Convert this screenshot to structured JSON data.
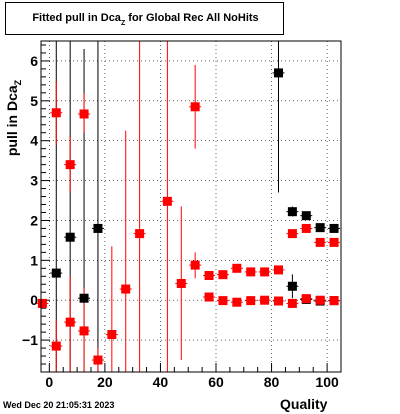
{
  "title": {
    "main": "Fitted pull in Dca",
    "subscript": "Z",
    "rest": " for Global Rec All NoHits"
  },
  "axes": {
    "ylabel_main": "pull in Dca",
    "ylabel_sub": "Z",
    "xlabel": "Quality"
  },
  "footer": "Wed Dec 20 21:05:31 2023",
  "colors": {
    "series_a": "#000000",
    "series_b": "#ff0000",
    "grid": "#000000"
  },
  "chart_data": {
    "type": "scatter",
    "title": "Fitted pull in Dca_Z for Global Rec All NoHits",
    "xlabel": "Quality",
    "ylabel": "pull in Dca_Z",
    "xlim": [
      -3,
      105
    ],
    "ylim": [
      -1.8,
      6.5
    ],
    "x_ticks": [
      0,
      20,
      40,
      60,
      80,
      100
    ],
    "y_ticks": [
      -1,
      0,
      1,
      2,
      3,
      4,
      5,
      6
    ],
    "grid": true,
    "series": [
      {
        "color": "black",
        "marker": "square",
        "points": [
          {
            "x": 2.5,
            "y": 0.68,
            "ylo": -1.8,
            "yhi": 6.5
          },
          {
            "x": 7.5,
            "y": 1.58,
            "ylo": -1.8,
            "yhi": 6.5
          },
          {
            "x": 12.5,
            "y": 0.05,
            "ylo": -1.8,
            "yhi": 6.3
          },
          {
            "x": 17.5,
            "y": 1.8,
            "ylo": -1.8,
            "yhi": 6.5
          },
          {
            "x": 82.5,
            "y": 5.7,
            "ylo": 2.7,
            "yhi": 6.5
          },
          {
            "x": 87.5,
            "y": 0.35,
            "ylo": 0.05,
            "yhi": 0.65
          },
          {
            "x": 87.5,
            "y": 2.22,
            "ylo": 2.1,
            "yhi": 2.35
          },
          {
            "x": 92.5,
            "y": 0.02,
            "ylo": -0.08,
            "yhi": 0.12
          },
          {
            "x": 92.5,
            "y": 2.12,
            "ylo": 2.05,
            "yhi": 2.2
          },
          {
            "x": 97.5,
            "y": -0.02,
            "ylo": -0.1,
            "yhi": 0.06
          },
          {
            "x": 97.5,
            "y": 1.82,
            "ylo": 1.76,
            "yhi": 1.88
          },
          {
            "x": 102.5,
            "y": -0.01,
            "ylo": -0.08,
            "yhi": 0.06
          },
          {
            "x": 102.5,
            "y": 1.8,
            "ylo": 1.74,
            "yhi": 1.86
          }
        ]
      },
      {
        "color": "red",
        "marker": "square",
        "points": [
          {
            "x": -2.5,
            "y": -0.08,
            "ylo": -0.15,
            "yhi": 0.0
          },
          {
            "x": 2.5,
            "y": 4.7,
            "ylo": 3.9,
            "yhi": 5.5
          },
          {
            "x": 2.5,
            "y": -1.15,
            "ylo": -1.8,
            "yhi": -0.5
          },
          {
            "x": 7.5,
            "y": 3.4,
            "ylo": 2.7,
            "yhi": 4.1
          },
          {
            "x": 7.5,
            "y": -0.55,
            "ylo": -1.8,
            "yhi": 0.6
          },
          {
            "x": 12.5,
            "y": 4.67,
            "ylo": 4.2,
            "yhi": 5.2
          },
          {
            "x": 12.5,
            "y": -0.77,
            "ylo": -1.8,
            "yhi": 0.3
          },
          {
            "x": 17.5,
            "y": -1.5,
            "ylo": -1.8,
            "yhi": -1.2
          },
          {
            "x": 22.5,
            "y": -0.86,
            "ylo": -1.8,
            "yhi": 1.35
          },
          {
            "x": 27.5,
            "y": 0.28,
            "ylo": -1.8,
            "yhi": 4.25
          },
          {
            "x": 32.5,
            "y": 1.67,
            "ylo": -1.8,
            "yhi": 6.5
          },
          {
            "x": 42.5,
            "y": 2.48,
            "ylo": -1.8,
            "yhi": 6.5
          },
          {
            "x": 47.5,
            "y": 0.42,
            "ylo": -1.5,
            "yhi": 2.35
          },
          {
            "x": 52.5,
            "y": 4.85,
            "ylo": 3.8,
            "yhi": 5.9
          },
          {
            "x": 52.5,
            "y": 0.88,
            "ylo": 0.55,
            "yhi": 1.2
          },
          {
            "x": 57.5,
            "y": 0.62,
            "ylo": 0.55,
            "yhi": 0.7
          },
          {
            "x": 57.5,
            "y": 0.08,
            "ylo": 0.03,
            "yhi": 0.13
          },
          {
            "x": 62.5,
            "y": 0.64,
            "ylo": 0.58,
            "yhi": 0.7
          },
          {
            "x": 62.5,
            "y": -0.01,
            "ylo": -0.05,
            "yhi": 0.03
          },
          {
            "x": 67.5,
            "y": 0.8,
            "ylo": 0.74,
            "yhi": 0.86
          },
          {
            "x": 67.5,
            "y": -0.05,
            "ylo": -0.09,
            "yhi": -0.01
          },
          {
            "x": 72.5,
            "y": 0.71,
            "ylo": 0.65,
            "yhi": 0.77
          },
          {
            "x": 72.5,
            "y": -0.01,
            "ylo": -0.05,
            "yhi": 0.03
          },
          {
            "x": 77.5,
            "y": 0.71,
            "ylo": 0.65,
            "yhi": 0.77
          },
          {
            "x": 77.5,
            "y": 0.0,
            "ylo": -0.04,
            "yhi": 0.04
          },
          {
            "x": 82.5,
            "y": 0.76,
            "ylo": 0.7,
            "yhi": 0.82
          },
          {
            "x": 82.5,
            "y": -0.02,
            "ylo": -0.06,
            "yhi": 0.02
          },
          {
            "x": 87.5,
            "y": 1.67,
            "ylo": 1.6,
            "yhi": 1.74
          },
          {
            "x": 87.5,
            "y": -0.08,
            "ylo": -0.12,
            "yhi": -0.04
          },
          {
            "x": 92.5,
            "y": 1.8,
            "ylo": 1.75,
            "yhi": 1.85
          },
          {
            "x": 92.5,
            "y": 0.04,
            "ylo": 0.0,
            "yhi": 0.08
          },
          {
            "x": 97.5,
            "y": 1.45,
            "ylo": 1.4,
            "yhi": 1.5
          },
          {
            "x": 97.5,
            "y": 0.0,
            "ylo": -0.04,
            "yhi": 0.04
          },
          {
            "x": 102.5,
            "y": 1.45,
            "ylo": 1.4,
            "yhi": 1.5
          },
          {
            "x": 102.5,
            "y": -0.01,
            "ylo": -0.05,
            "yhi": 0.03
          }
        ]
      }
    ]
  }
}
